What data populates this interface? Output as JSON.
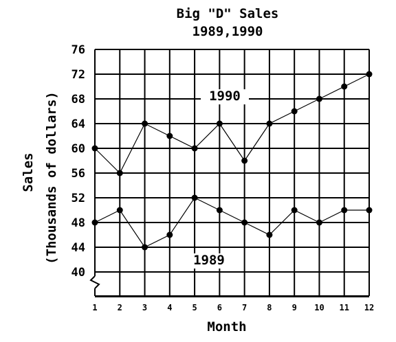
{
  "chart_data": {
    "type": "line",
    "title_line1": "Big \"D\" Sales",
    "title_line2": "1989,1990",
    "xlabel": "Month",
    "ylabel_line1": "Sales",
    "ylabel_line2": "(Thousands of dollars)",
    "x": [
      1,
      2,
      3,
      4,
      5,
      6,
      7,
      8,
      9,
      10,
      11,
      12
    ],
    "yticks": [
      40,
      44,
      48,
      52,
      56,
      60,
      64,
      68,
      72,
      76
    ],
    "ylim": [
      40,
      76
    ],
    "grid": true,
    "axis_break": true,
    "series": [
      {
        "name": "1990",
        "values": [
          60,
          56,
          64,
          62,
          60,
          64,
          58,
          64,
          66,
          68,
          70,
          72
        ]
      },
      {
        "name": "1989",
        "values": [
          48,
          50,
          44,
          46,
          52,
          50,
          48,
          46,
          50,
          48,
          50,
          50
        ]
      }
    ]
  }
}
